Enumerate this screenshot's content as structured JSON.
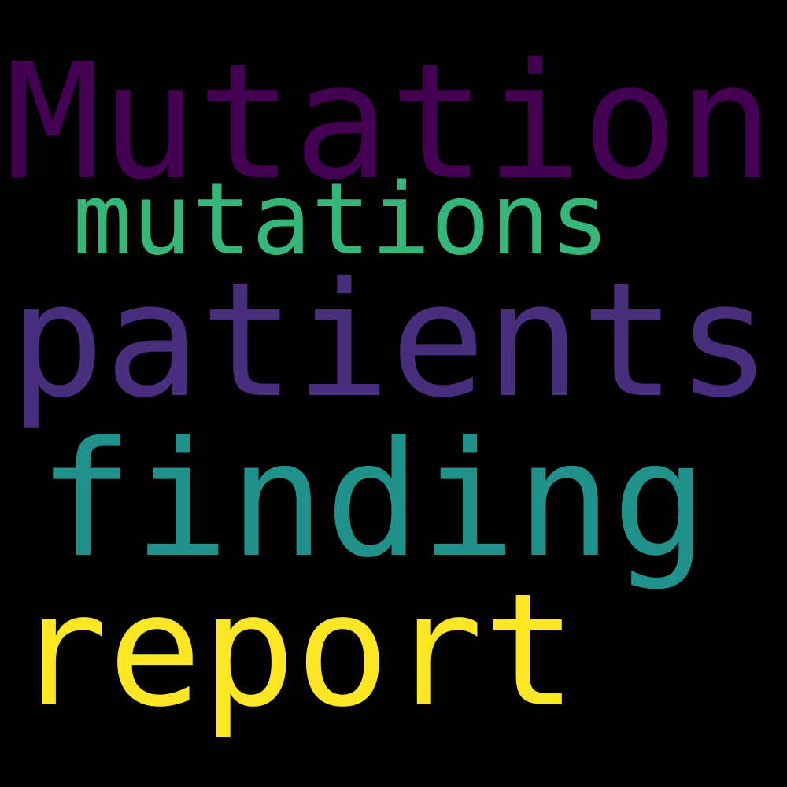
{
  "words": [
    {
      "text": "Mutation",
      "color": "#440154"
    },
    {
      "text": "mutations",
      "color": "#35b779"
    },
    {
      "text": "patients",
      "color": "#472f7d"
    },
    {
      "text": "finding",
      "color": "#21918c"
    },
    {
      "text": "report",
      "color": "#fde725"
    }
  ]
}
